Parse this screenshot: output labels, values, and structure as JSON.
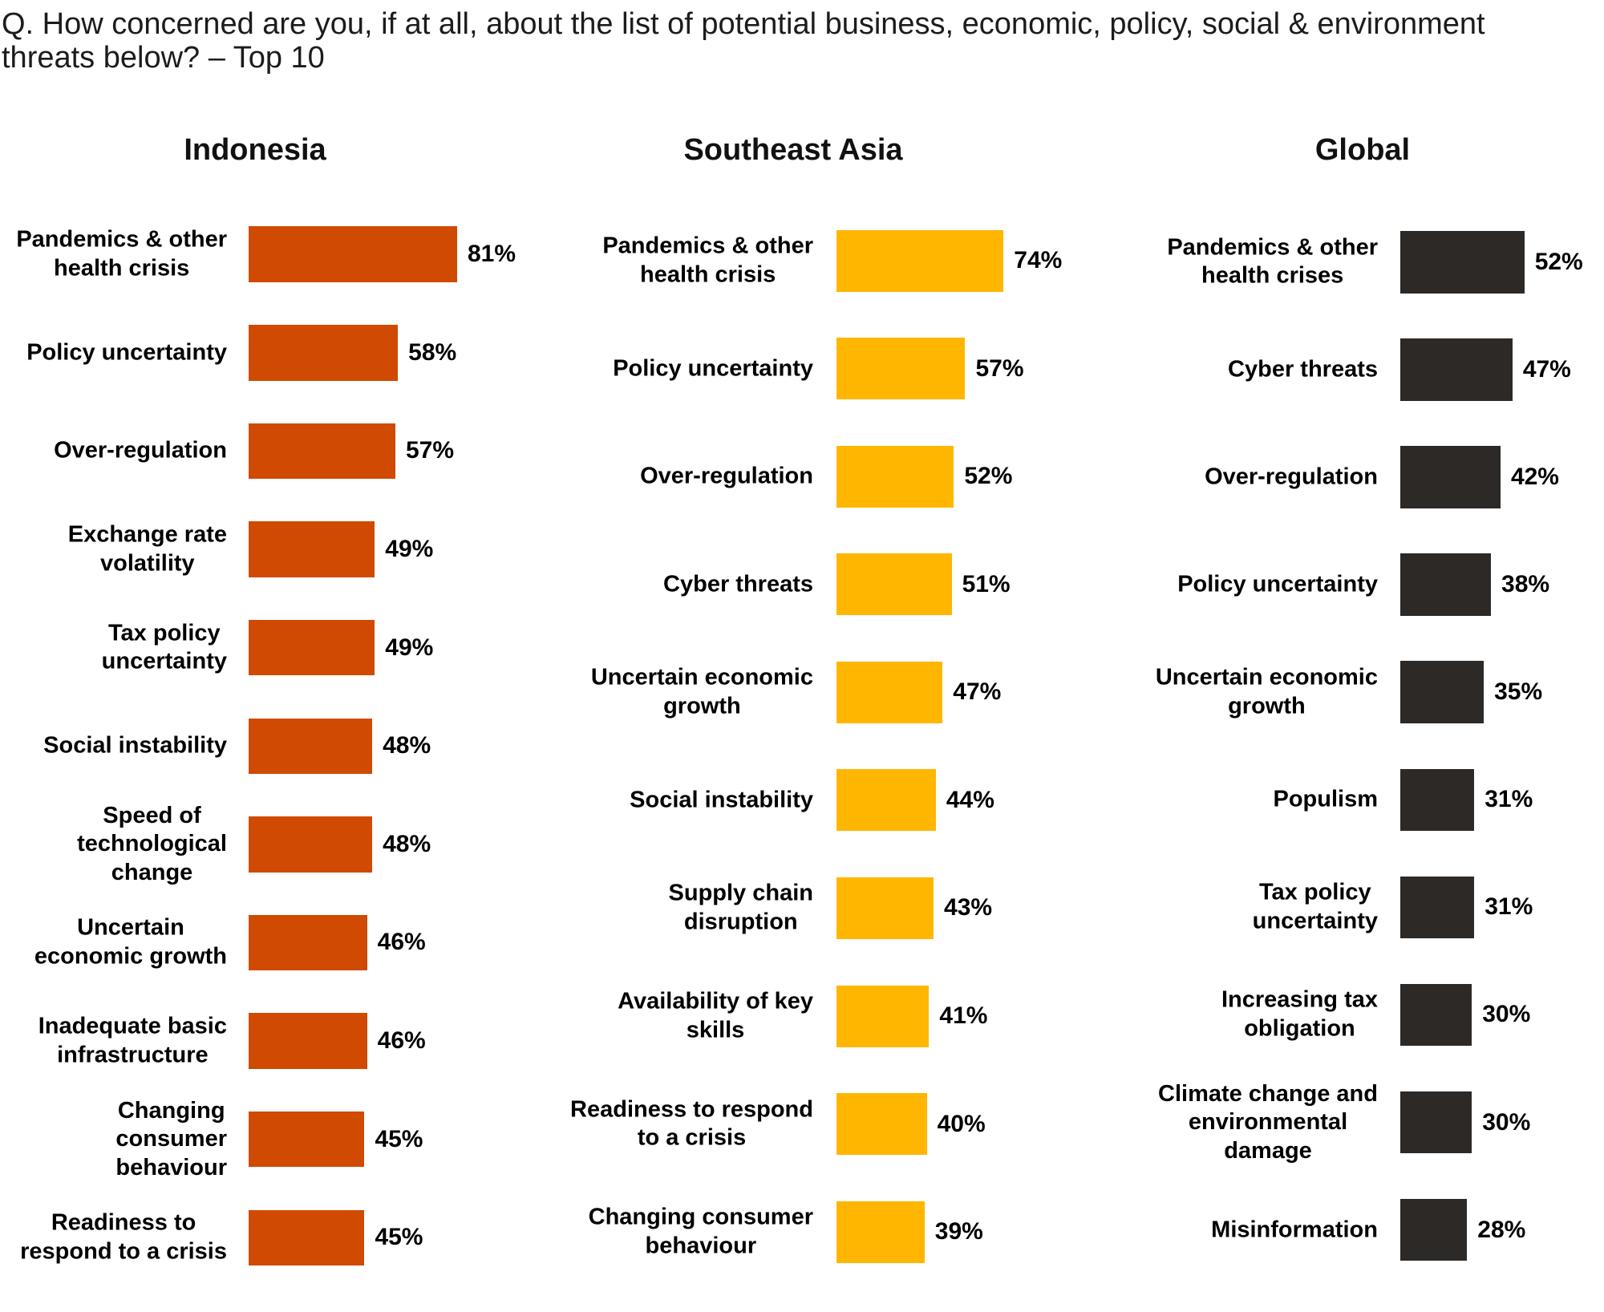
{
  "title": "Q. How concerned are you, if at all, about the list of potential business, economic, policy, social & environment\nthreats below? – Top 10",
  "colors": {
    "indonesia_bar": "#D04A02",
    "southeast_asia_bar": "#FFB600",
    "global_bar": "#2D2926",
    "title_text": "#1c1c1c",
    "label_text": "#000000",
    "background": "#ffffff"
  },
  "chart_data": [
    {
      "type": "bar",
      "orientation": "horizontal",
      "title": "Indonesia",
      "bar_color": "#D04A02",
      "value_suffix": "%",
      "value_label_position": "outside-end",
      "xlim": [
        0,
        85
      ],
      "categories": [
        "Pandemics & other health crisis",
        "Policy uncertainty",
        "Over-regulation",
        "Exchange rate volatility",
        "Tax policy uncertainty",
        "Social instability",
        "Speed of technological change",
        "Uncertain economic growth",
        "Inadequate basic infrastructure",
        "Changing consumer behaviour",
        "Readiness to respond to a crisis"
      ],
      "label_lines": [
        [
          "Pandemics & other",
          "health crisis"
        ],
        [
          "Policy uncertainty"
        ],
        [
          "Over-regulation"
        ],
        [
          "Exchange rate",
          "volatility"
        ],
        [
          "Tax policy",
          "uncertainty"
        ],
        [
          "Social instability"
        ],
        [
          "Speed of",
          "technological",
          "change"
        ],
        [
          "Uncertain",
          "economic growth"
        ],
        [
          "Inadequate basic",
          "infrastructure"
        ],
        [
          "Changing",
          "consumer",
          "behaviour"
        ],
        [
          "Readiness to",
          "respond to a crisis"
        ]
      ],
      "values": [
        81,
        58,
        57,
        49,
        49,
        48,
        48,
        46,
        46,
        45,
        45
      ]
    },
    {
      "type": "bar",
      "orientation": "horizontal",
      "title": "Southeast Asia",
      "bar_color": "#FFB600",
      "value_suffix": "%",
      "value_label_position": "outside-end",
      "xlim": [
        0,
        80
      ],
      "categories": [
        "Pandemics & other health crisis",
        "Policy uncertainty",
        "Over-regulation",
        "Cyber threats",
        "Uncertain economic growth",
        "Social instability",
        "Supply chain disruption",
        "Availability of key skills",
        "Readiness to respond to a crisis",
        "Changing consumer behaviour"
      ],
      "label_lines": [
        [
          "Pandemics & other",
          "health crisis"
        ],
        [
          "Policy uncertainty"
        ],
        [
          "Over-regulation"
        ],
        [
          "Cyber threats"
        ],
        [
          "Uncertain economic",
          "growth"
        ],
        [
          "Social instability"
        ],
        [
          "Supply chain",
          "disruption"
        ],
        [
          "Availability of key",
          "skills"
        ],
        [
          "Readiness to respond",
          "to a crisis"
        ],
        [
          "Changing consumer",
          "behaviour"
        ]
      ],
      "values": [
        74,
        57,
        52,
        51,
        47,
        44,
        43,
        41,
        40,
        39
      ]
    },
    {
      "type": "bar",
      "orientation": "horizontal",
      "title": "Global",
      "bar_color": "#2D2926",
      "value_suffix": "%",
      "value_label_position": "outside-end",
      "xlim": [
        0,
        75
      ],
      "categories": [
        "Pandemics & other health crises",
        "Cyber threats",
        "Over-regulation",
        "Policy uncertainty",
        "Uncertain economic growth",
        "Populism",
        "Tax policy uncertainty",
        "Increasing tax obligation",
        "Climate change and environmental damage",
        "Misinformation"
      ],
      "label_lines": [
        [
          "Pandemics & other",
          "health crises"
        ],
        [
          "Cyber threats"
        ],
        [
          "Over-regulation"
        ],
        [
          "Policy uncertainty"
        ],
        [
          "Uncertain economic",
          "growth"
        ],
        [
          "Populism"
        ],
        [
          "Tax policy",
          "uncertainty"
        ],
        [
          "Increasing tax",
          "obligation"
        ],
        [
          "Climate change and",
          "environmental",
          "damage"
        ],
        [
          "Misinformation"
        ]
      ],
      "values": [
        52,
        47,
        42,
        38,
        35,
        31,
        31,
        30,
        30,
        28
      ]
    }
  ]
}
